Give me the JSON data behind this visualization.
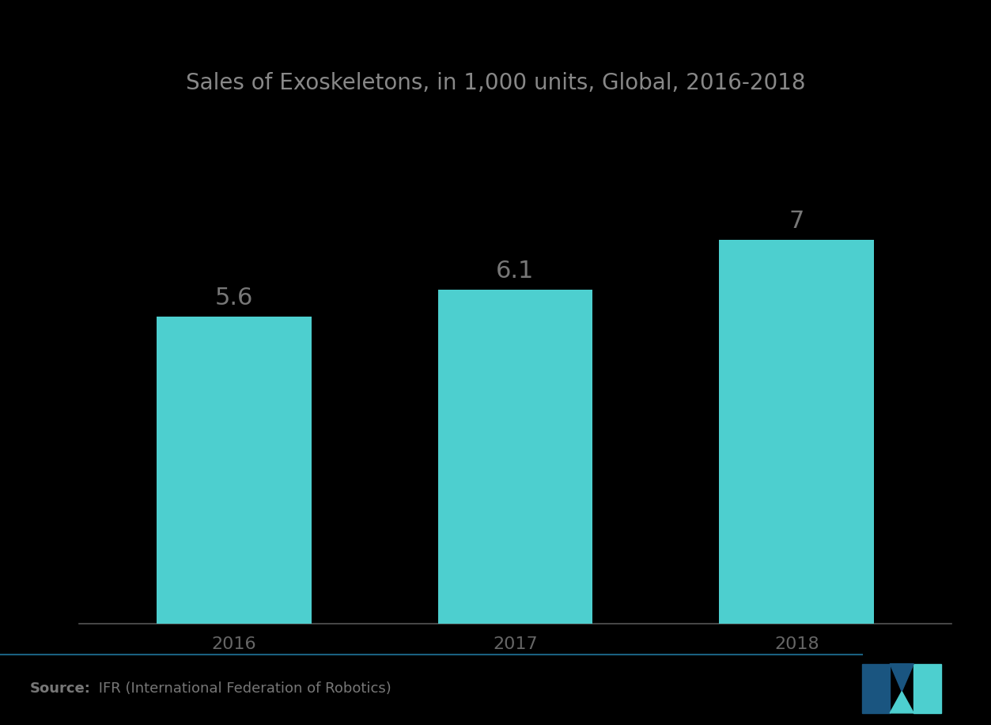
{
  "title": "Sales of Exoskeletons, in 1,000 units, Global, 2016-2018",
  "categories": [
    "2016",
    "2017",
    "2018"
  ],
  "values": [
    5.6,
    6.1,
    7.0
  ],
  "labels": [
    "5.6",
    "6.1",
    "7"
  ],
  "bar_color": "#4DCFCF",
  "background_color": "#000000",
  "title_color": "#888888",
  "label_color": "#777777",
  "tick_color": "#666666",
  "axis_line_color": "#555555",
  "source_bold": "Source:",
  "source_text": " IFR (International Federation of Robotics)",
  "source_color": "#777777",
  "footer_line_color": "#1a6080",
  "ylim": [
    0,
    9
  ],
  "bar_width": 0.55,
  "label_fontsize": 22,
  "title_fontsize": 20,
  "tick_fontsize": 16,
  "source_fontsize": 13,
  "logo_left_color": "#1a5580",
  "logo_right_color": "#4DCFCF",
  "logo_mid_color": "#2288aa"
}
